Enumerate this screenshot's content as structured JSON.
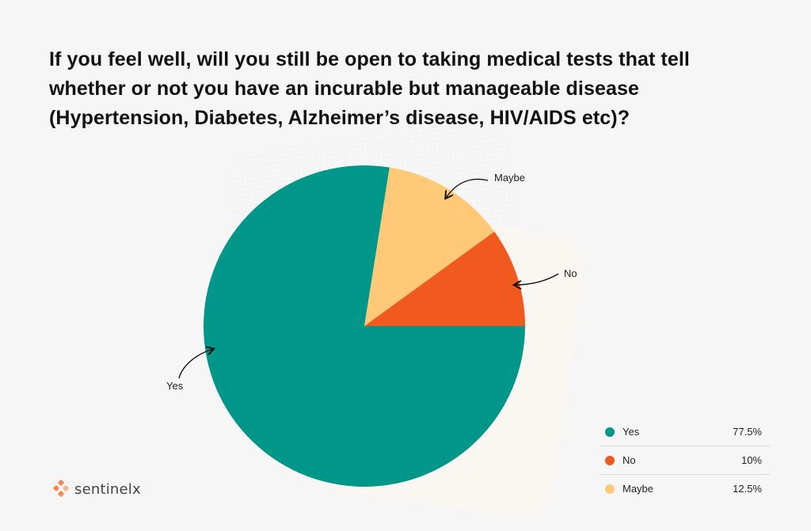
{
  "title": "If you feel well, will you still be open to taking medical tests that tell whether or not you have an incurable but manageable disease (Hypertension, Diabetes, Alzheimer’s disease, HIV/AIDS etc)?",
  "brand": {
    "name": "sentinelx",
    "icon": "sentinelx-logo-icon"
  },
  "colors": {
    "yes": "#00968a",
    "no": "#f15a1f",
    "maybe": "#ffc978",
    "background": "#f6f6f6"
  },
  "chart_data": {
    "type": "pie",
    "title": "If you feel well, will you still be open to taking medical tests that tell whether or not you have an incurable but manageable disease (Hypertension, Diabetes, Alzheimer’s disease, HIV/AIDS etc)?",
    "start": "3 o'clock, counterclockwise",
    "legend_position": "bottom-right",
    "slices": [
      {
        "label": "Yes",
        "value": 77.5,
        "display": "77.5%",
        "color": "#00968a"
      },
      {
        "label": "No",
        "value": 10,
        "display": "10%",
        "color": "#f15a1f"
      },
      {
        "label": "Maybe",
        "value": 12.5,
        "display": "12.5%",
        "color": "#ffc978"
      }
    ]
  }
}
